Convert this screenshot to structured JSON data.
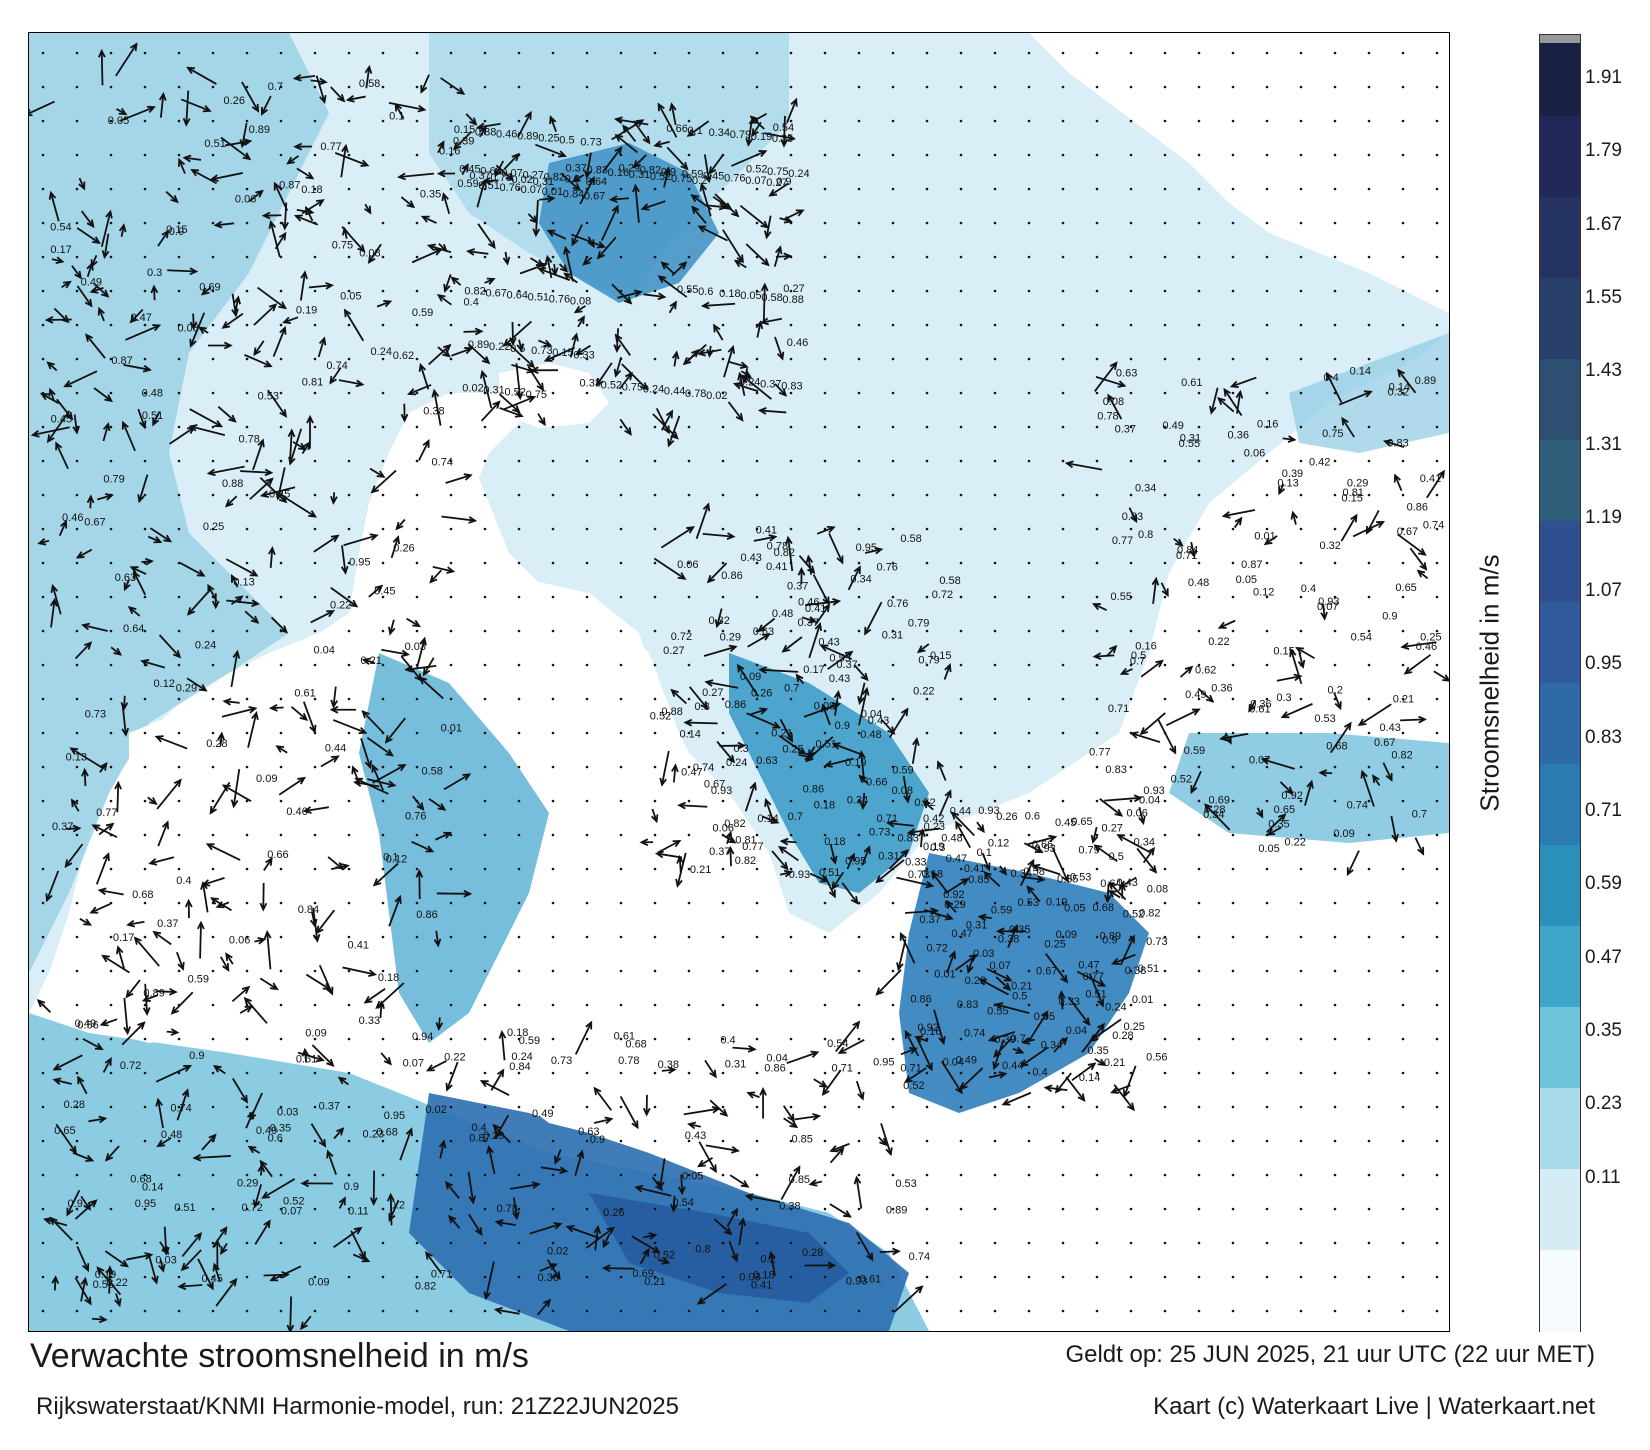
{
  "footer": {
    "title": "Verwachte stroomsnelheid in m/s",
    "run": "Rijkswaterstaat/KNMI Harmonie-model, run: 21Z22JUN2025",
    "valid": "Geldt op: 25 JUN 2025, 21 uur UTC (22 uur MET)",
    "credit": "Kaart (c) Waterkaart Live | Waterkaart.net"
  },
  "colorbar": {
    "title": "Stroomsnelheid in m/s",
    "ticks": [
      "1.91",
      "1.79",
      "1.67",
      "1.55",
      "1.43",
      "1.31",
      "1.19",
      "1.07",
      "0.95",
      "0.83",
      "0.71",
      "0.59",
      "0.47",
      "0.35",
      "0.23",
      "0.11"
    ],
    "colors": [
      "#f4fafd",
      "#d4edf5",
      "#a8dbe9",
      "#6ec2da",
      "#3ea6c8",
      "#2a90b8",
      "#2b7ab0",
      "#2e6aa8",
      "#2f5a9c",
      "#2f4f8e",
      "#2e5e7a",
      "#2d4f72",
      "#283f6c",
      "#243363",
      "#1f2858",
      "#1a1f45"
    ]
  },
  "map": {
    "colors": {
      "land": "#ffffff",
      "shallow": "#d9eef6",
      "medium": "#7ec6df",
      "deep": "#2f8fbf",
      "deepest": "#265a9e",
      "arrow": "#111111"
    },
    "speed_labels": [
      "0.19",
      "0.13",
      "0.21",
      "0.02",
      "0.16",
      "0.15",
      "0.14",
      "0.18",
      "0.12",
      "0.11",
      "0.17",
      "0.08",
      "0.07",
      "0.09",
      "0.1",
      "0.23",
      "0.2",
      "0.24",
      "0.25",
      "0.22",
      "0.4",
      "0.42",
      "0.48",
      "0.28",
      "0.32",
      "0.64",
      "0.59",
      "0.35",
      "0.3",
      "0.26",
      "0.31",
      "0.33",
      "0.38",
      "0.43",
      "0.05",
      "0.06",
      "0.03",
      "0.04",
      "0.01",
      "0.27",
      "0.29",
      "0.34",
      "0.36",
      "0.44",
      "0.37",
      "0.5",
      "0.47",
      "0.53",
      "0.55",
      "0.62",
      "0.72",
      "0.56",
      "0.51",
      "0.45",
      "0.39",
      "0.41",
      "0.49",
      "0.52",
      "0.57",
      "0.46",
      "0.61",
      "0.58",
      "0.65",
      "0.7",
      "0.8",
      "0.84",
      "0.82",
      "0.94",
      "0.79",
      "0.87",
      "0.78",
      "0.83",
      "0.73",
      "0.54",
      "0.63",
      "0.6",
      "0.69",
      "0.74",
      "0.77",
      "0.76",
      "0.68",
      "0.81",
      "0.66",
      "0.71",
      "0.75",
      "0.86",
      "0.89",
      "0.85",
      "0.88",
      "0.93",
      "0.95",
      "0.92",
      "0.67",
      "0.9"
    ]
  }
}
